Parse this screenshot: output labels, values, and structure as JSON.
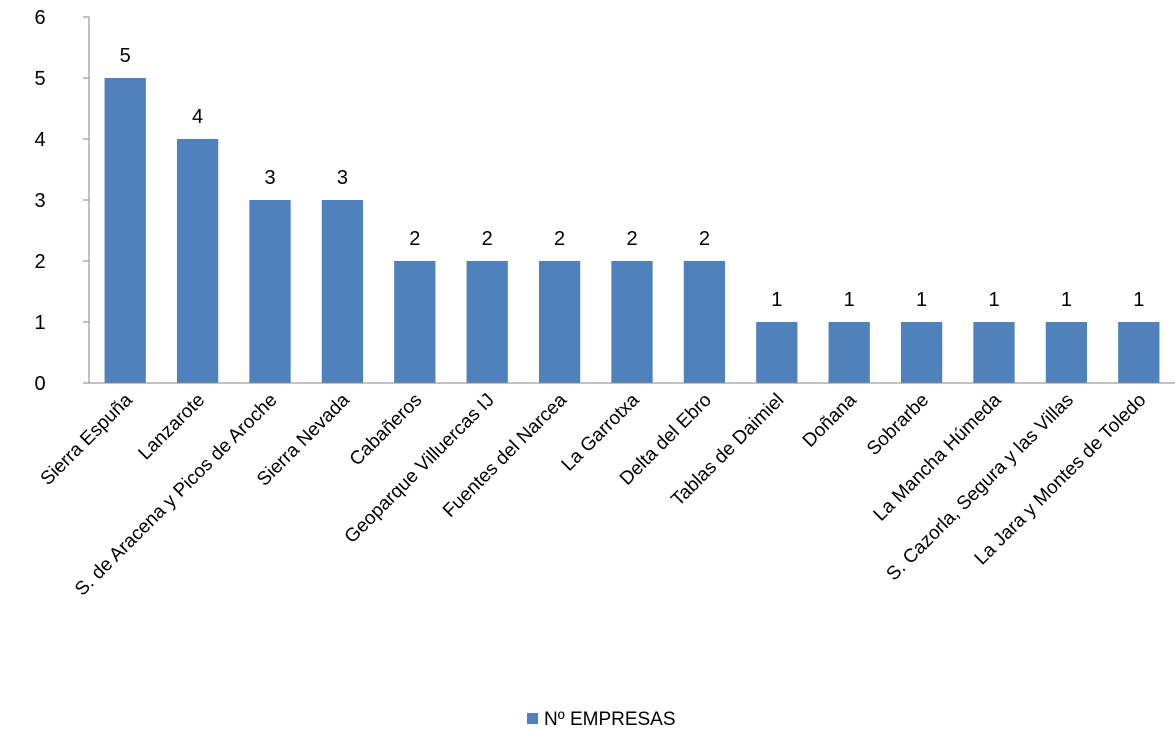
{
  "chart_data": {
    "type": "bar",
    "categories": [
      "Sierra Espuña",
      "Lanzarote",
      "S. de Aracena y Picos de Aroche",
      "Sierra Nevada",
      "Cabañeros",
      "Geoparque Villuercas IJ",
      "Fuentes del Narcea",
      "La Garrotxa",
      "Delta del Ebro",
      "Tablas de Daimiel",
      "Doñana",
      "Sobrarbe",
      "La Mancha Húmeda",
      "S. Cazorla, Segura y las Villas",
      "La Jara y Montes de Toledo"
    ],
    "series": [
      {
        "name": "Nº EMPRESAS",
        "values": [
          5,
          4,
          3,
          3,
          2,
          2,
          2,
          2,
          2,
          1,
          1,
          1,
          1,
          1,
          1
        ],
        "color": "#4F81BD"
      }
    ],
    "data_labels": [
      "5",
      "4",
      "3",
      "3",
      "2",
      "2",
      "2",
      "2",
      "2",
      "1",
      "1",
      "1",
      "1",
      "1",
      "1"
    ],
    "y_ticks": [
      0,
      1,
      2,
      3,
      4,
      5,
      6
    ],
    "ylim": [
      0,
      6
    ],
    "grid": false,
    "legend_position": "bottom",
    "axis_color": "#868686"
  }
}
